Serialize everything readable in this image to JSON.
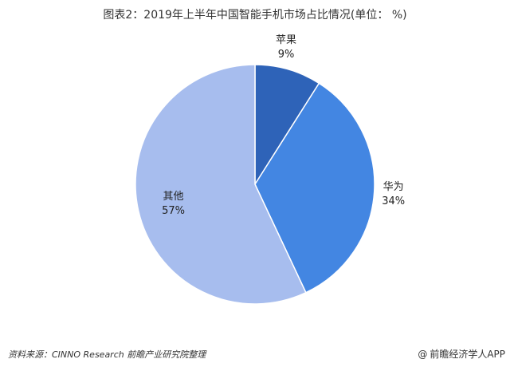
{
  "chart_data": {
    "type": "pie",
    "title": "图表2：2019年上半年中国智能手机市场占比情况(单位： %)",
    "slices": [
      {
        "name": "苹果",
        "value": 9,
        "label": "9%",
        "color": "#2e63b8"
      },
      {
        "name": "华为",
        "value": 34,
        "label": "34%",
        "color": "#4386e2"
      },
      {
        "name": "其他",
        "value": 57,
        "label": "57%",
        "color": "#a7bdee"
      }
    ]
  },
  "footer": {
    "source": "资料来源：CINNO Research 前瞻产业研究院整理",
    "brand": "前瞻经济学人APP",
    "brand_icon": "at-sign-icon"
  }
}
